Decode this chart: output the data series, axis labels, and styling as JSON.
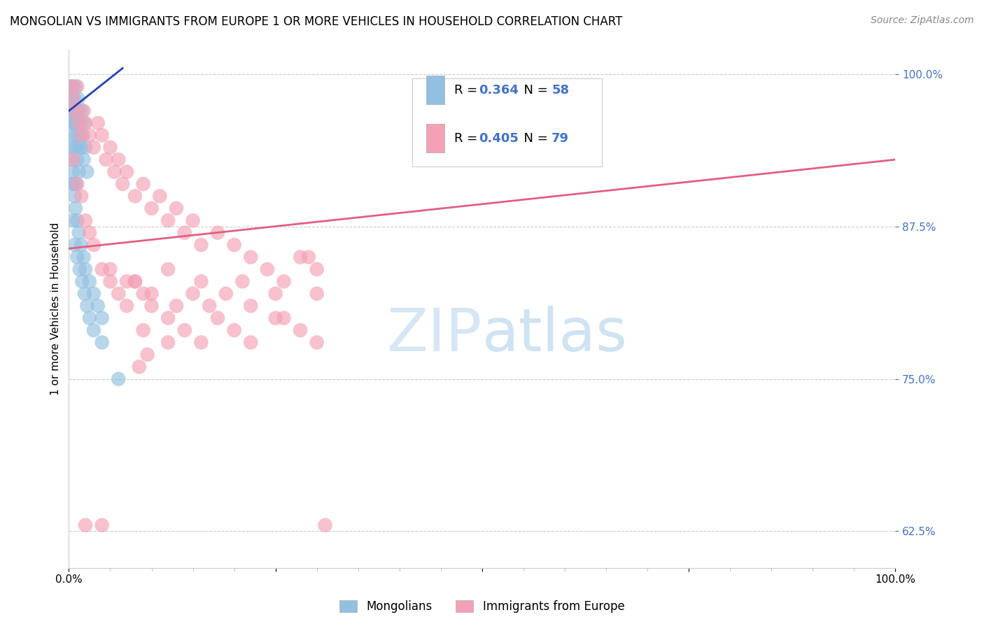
{
  "title": "MONGOLIAN VS IMMIGRANTS FROM EUROPE 1 OR MORE VEHICLES IN HOUSEHOLD CORRELATION CHART",
  "source": "Source: ZipAtlas.com",
  "ylabel": "1 or more Vehicles in Household",
  "blue_color": "#92C0E0",
  "pink_color": "#F4A0B5",
  "blue_line_color": "#2244AA",
  "pink_line_color": "#E06080",
  "R_blue": 0.364,
  "N_blue": 58,
  "R_pink": 0.405,
  "N_pink": 79,
  "xlim": [
    0.0,
    1.0
  ],
  "ylim": [
    0.595,
    1.02
  ],
  "yticks": [
    0.625,
    0.75,
    0.875,
    1.0
  ],
  "ytick_labels": [
    "62.5%",
    "75.0%",
    "87.5%",
    "100.0%"
  ],
  "tick_color": "#4472C4",
  "watermark_zip": "ZIP",
  "watermark_atlas": "atlas",
  "background_color": "#FFFFFF",
  "grid_color": "#CCCCCC",
  "title_fontsize": 12,
  "axis_label_fontsize": 11,
  "tick_fontsize": 11,
  "source_fontsize": 10,
  "legend_labels": [
    "Mongolians",
    "Immigrants from Europe"
  ],
  "blue_x": [
    0.002,
    0.003,
    0.004,
    0.005,
    0.006,
    0.007,
    0.008,
    0.009,
    0.01,
    0.011,
    0.012,
    0.013,
    0.014,
    0.015,
    0.016,
    0.017,
    0.018,
    0.019,
    0.02,
    0.022,
    0.003,
    0.004,
    0.005,
    0.006,
    0.007,
    0.008,
    0.009,
    0.01,
    0.011,
    0.012,
    0.002,
    0.003,
    0.004,
    0.005,
    0.006,
    0.007,
    0.008,
    0.009,
    0.01,
    0.012,
    0.015,
    0.018,
    0.02,
    0.025,
    0.03,
    0.035,
    0.04,
    0.005,
    0.007,
    0.01,
    0.013,
    0.016,
    0.019,
    0.022,
    0.025,
    0.03,
    0.04,
    0.06
  ],
  "blue_y": [
    0.99,
    0.98,
    0.97,
    0.99,
    0.98,
    0.96,
    0.99,
    0.97,
    0.96,
    0.98,
    0.97,
    0.95,
    0.96,
    0.94,
    0.97,
    0.95,
    0.93,
    0.96,
    0.94,
    0.92,
    0.97,
    0.96,
    0.95,
    0.97,
    0.94,
    0.96,
    0.95,
    0.93,
    0.94,
    0.92,
    0.94,
    0.93,
    0.91,
    0.92,
    0.91,
    0.9,
    0.89,
    0.91,
    0.88,
    0.87,
    0.86,
    0.85,
    0.84,
    0.83,
    0.82,
    0.81,
    0.8,
    0.88,
    0.86,
    0.85,
    0.84,
    0.83,
    0.82,
    0.81,
    0.8,
    0.79,
    0.78,
    0.75
  ],
  "pink_x": [
    0.003,
    0.005,
    0.007,
    0.01,
    0.012,
    0.015,
    0.018,
    0.02,
    0.025,
    0.03,
    0.035,
    0.04,
    0.045,
    0.05,
    0.055,
    0.06,
    0.065,
    0.07,
    0.08,
    0.09,
    0.1,
    0.11,
    0.12,
    0.13,
    0.14,
    0.15,
    0.16,
    0.18,
    0.2,
    0.22,
    0.24,
    0.26,
    0.28,
    0.3,
    0.005,
    0.01,
    0.015,
    0.02,
    0.025,
    0.03,
    0.04,
    0.05,
    0.06,
    0.07,
    0.08,
    0.09,
    0.1,
    0.12,
    0.14,
    0.16,
    0.18,
    0.2,
    0.22,
    0.25,
    0.28,
    0.3,
    0.12,
    0.16,
    0.19,
    0.22,
    0.26,
    0.3,
    0.09,
    0.13,
    0.07,
    0.1,
    0.05,
    0.08,
    0.29,
    0.15,
    0.17,
    0.21,
    0.25,
    0.12,
    0.095,
    0.085,
    0.31,
    0.02,
    0.04
  ],
  "pink_y": [
    0.99,
    0.98,
    0.97,
    0.99,
    0.96,
    0.95,
    0.97,
    0.96,
    0.95,
    0.94,
    0.96,
    0.95,
    0.93,
    0.94,
    0.92,
    0.93,
    0.91,
    0.92,
    0.9,
    0.91,
    0.89,
    0.9,
    0.88,
    0.89,
    0.87,
    0.88,
    0.86,
    0.87,
    0.86,
    0.85,
    0.84,
    0.83,
    0.85,
    0.84,
    0.93,
    0.91,
    0.9,
    0.88,
    0.87,
    0.86,
    0.84,
    0.83,
    0.82,
    0.81,
    0.83,
    0.82,
    0.81,
    0.8,
    0.79,
    0.78,
    0.8,
    0.79,
    0.78,
    0.8,
    0.79,
    0.78,
    0.84,
    0.83,
    0.82,
    0.81,
    0.8,
    0.82,
    0.79,
    0.81,
    0.83,
    0.82,
    0.84,
    0.83,
    0.85,
    0.82,
    0.81,
    0.83,
    0.82,
    0.78,
    0.77,
    0.76,
    0.63,
    0.63,
    0.63
  ]
}
